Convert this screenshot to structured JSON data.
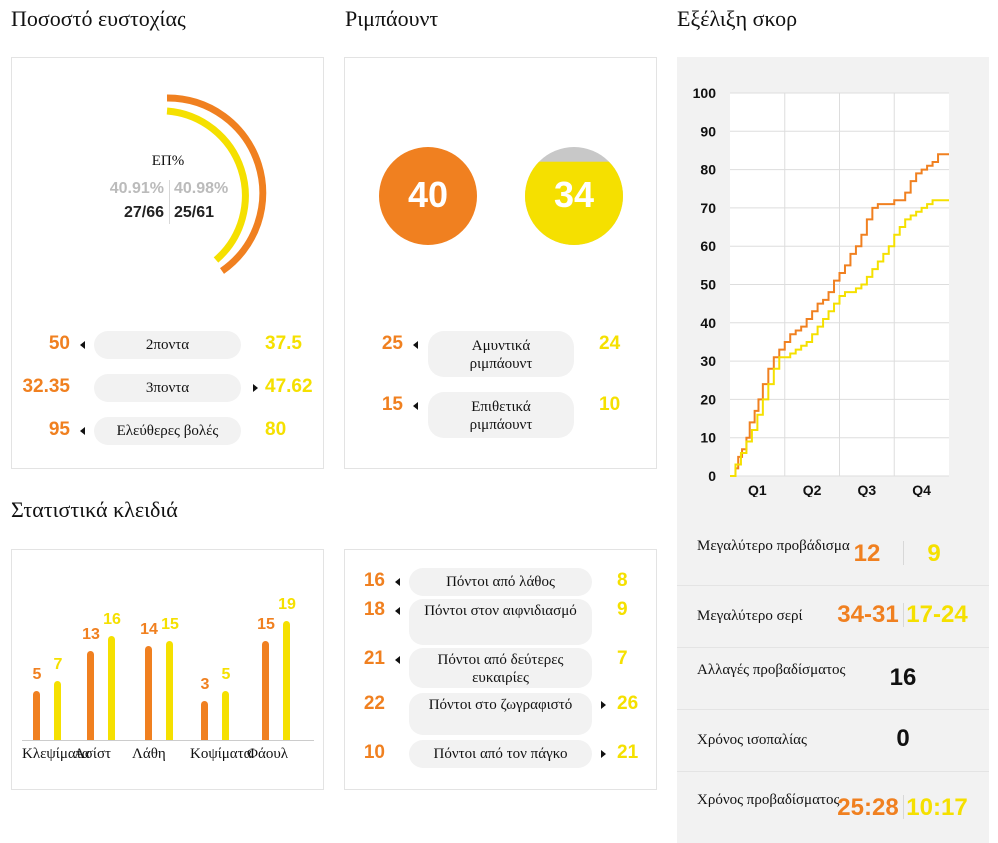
{
  "headings": {
    "accuracy": "Ποσοστό ευστοχίας",
    "rebounds": "Ριμπάουντ",
    "score_evolution": "Εξέλιξη σκορ",
    "key_stats": "Στατιστικά κλειδιά"
  },
  "accuracy": {
    "label": "ΕΠ%",
    "team1_pct": "40.91%",
    "team2_pct": "40.98%",
    "team1_made": "27/66",
    "team2_made": "25/61",
    "team1_fraction": 0.4091,
    "team2_fraction": 0.4098,
    "rows": [
      {
        "t1": "50",
        "label": "2ποντα",
        "t2": "37.5",
        "leader": "t1"
      },
      {
        "t1": "32.35",
        "label": "3ποντα",
        "t2": "47.62",
        "leader": "t2"
      },
      {
        "t1": "95",
        "label": "Ελεύθερες βολές",
        "t2": "80",
        "leader": "t1"
      }
    ]
  },
  "rebounds": {
    "team1_total": "40",
    "team2_total": "34",
    "team2_fill_fraction": 0.85,
    "rows": [
      {
        "t1": "25",
        "label": "Αμυντικά ριμπάουντ",
        "t2": "24",
        "leader": "t1"
      },
      {
        "t1": "15",
        "label": "Επιθετικά ριμπάουντ",
        "t2": "10",
        "leader": "t1"
      }
    ]
  },
  "key_stats": {
    "bars": [
      {
        "label": "Κλεψίματα",
        "t1": "5",
        "t2": "7"
      },
      {
        "label": "Ασίστ",
        "t1": "13",
        "t2": "16"
      },
      {
        "label": "Λάθη",
        "t1": "14",
        "t2": "15"
      },
      {
        "label": "Κοψίματα",
        "t1": "3",
        "t2": "5"
      },
      {
        "label": "Φάουλ",
        "t1": "15",
        "t2": "19"
      }
    ],
    "points": [
      {
        "t1": "16",
        "label": "Πόντοι από λάθος",
        "t2": "8",
        "leader": "t1"
      },
      {
        "t1": "18",
        "label": "Πόντοι στον αιφνιδιασμό",
        "t2": "9",
        "leader": "t1"
      },
      {
        "t1": "21",
        "label": "Πόντοι από δεύτερες ευκαιρίες",
        "t2": "7",
        "leader": "t1"
      },
      {
        "t1": "22",
        "label": "Πόντοι στο ζωγραφιστό",
        "t2": "26",
        "leader": "t2"
      },
      {
        "t1": "10",
        "label": "Πόντοι από τον πάγκο",
        "t2": "21",
        "leader": "t2"
      }
    ]
  },
  "chart_data": {
    "type": "line",
    "ylim": [
      0,
      100
    ],
    "y_ticks": [
      "0",
      "10",
      "20",
      "30",
      "40",
      "50",
      "60",
      "70",
      "80",
      "90",
      "100"
    ],
    "x_ticks": [
      "Q1",
      "Q2",
      "Q3",
      "Q4"
    ],
    "xlim": [
      0,
      40
    ],
    "series": [
      {
        "color": "#f08020",
        "x": [
          0,
          1,
          1.5,
          2.2,
          3,
          3.6,
          4.5,
          5.2,
          6,
          7,
          8,
          9,
          10,
          11,
          12,
          13,
          14,
          15,
          16,
          17,
          18,
          19,
          20,
          21,
          22,
          23,
          24,
          25,
          26,
          27,
          28,
          29,
          30,
          31,
          32,
          33,
          34,
          35,
          36,
          37,
          38,
          38.6,
          39,
          39.5,
          40
        ],
        "y": [
          0,
          2,
          5,
          7,
          10,
          14,
          17,
          20,
          24,
          28,
          31,
          33,
          35,
          37,
          38,
          39,
          41,
          43,
          45,
          46,
          48,
          51,
          53,
          55,
          58,
          60,
          63,
          67,
          70,
          71,
          71,
          71,
          72,
          72,
          74,
          77,
          79,
          80,
          81,
          82,
          84,
          84,
          84,
          84,
          84
        ]
      },
      {
        "color": "#f5e000",
        "x": [
          0,
          1,
          2,
          3,
          4,
          5,
          6,
          7,
          8,
          9,
          10,
          11,
          12,
          13,
          14,
          15,
          16,
          17,
          18,
          19,
          20,
          21,
          22,
          23,
          24,
          25,
          26,
          27,
          28,
          29,
          30,
          31,
          32,
          33,
          34,
          35,
          36,
          37,
          38,
          39,
          40
        ],
        "y": [
          0,
          3,
          6,
          9,
          12,
          16,
          20,
          24,
          28,
          31,
          31,
          32,
          33,
          34,
          35,
          37,
          39,
          41,
          43,
          45,
          47,
          48,
          48,
          49,
          50,
          52,
          54,
          56,
          58,
          60,
          63,
          65,
          67,
          68,
          69,
          70,
          71,
          72,
          72,
          72,
          72
        ]
      }
    ]
  },
  "summary": [
    {
      "label": "Μεγαλύτερο προβάδισμα",
      "t1": "12",
      "t2": "9"
    },
    {
      "label": "Μεγαλύτερο σερί",
      "t1": "34-31",
      "t2": "17-24"
    },
    {
      "label": "Αλλαγές προβαδίσματος",
      "single": "16"
    },
    {
      "label": "Χρόνος ισοπαλίας",
      "single": "0"
    },
    {
      "label": "Χρόνος προβαδίσματος",
      "t1": "25:28",
      "t2": "10:17"
    }
  ]
}
